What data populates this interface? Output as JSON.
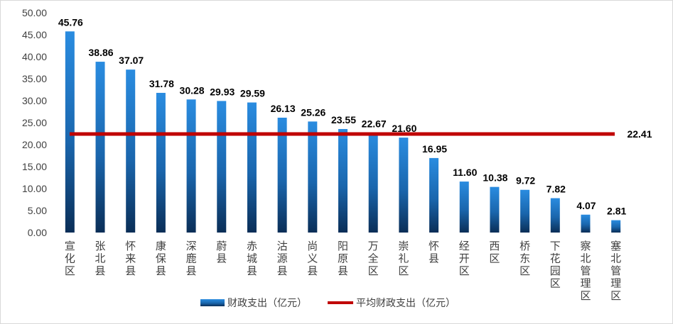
{
  "chart_data": {
    "type": "bar",
    "categories": [
      "宣化区",
      "张北县",
      "怀来县",
      "康保县",
      "深鹿县",
      "蔚县",
      "赤城县",
      "沽源县",
      "尚义县",
      "阳原县",
      "万全区",
      "崇礼区",
      "怀县",
      "经开区",
      "西区",
      "桥东区",
      "下花园区",
      "察北管理区",
      "塞北管理区"
    ],
    "series": [
      {
        "name": "财政支出（亿元）",
        "type": "bar",
        "color": "#1f78c8",
        "values": [
          45.76,
          38.86,
          37.07,
          31.78,
          30.28,
          29.93,
          29.59,
          26.13,
          25.26,
          23.55,
          22.67,
          21.6,
          16.95,
          11.6,
          10.38,
          9.72,
          7.82,
          4.07,
          2.81
        ],
        "labels": [
          "45.76",
          "38.86",
          "37.07",
          "31.78",
          "30.28",
          "29.93",
          "29.59",
          "26.13",
          "25.26",
          "23.55",
          "22.67",
          "21.60",
          "16.95",
          "11.60",
          "10.38",
          "9.72",
          "7.82",
          "4.07",
          "2.81"
        ]
      },
      {
        "name": "平均财政支出（亿元）",
        "type": "line",
        "color": "#c00000",
        "value": 22.41,
        "label": "22.41"
      }
    ],
    "yticks": [
      "0.00",
      "5.00",
      "10.00",
      "15.00",
      "20.00",
      "25.00",
      "30.00",
      "35.00",
      "40.00",
      "45.00",
      "50.00"
    ],
    "ylim": [
      0,
      50
    ],
    "legend_position": "bottom",
    "grid": false
  }
}
